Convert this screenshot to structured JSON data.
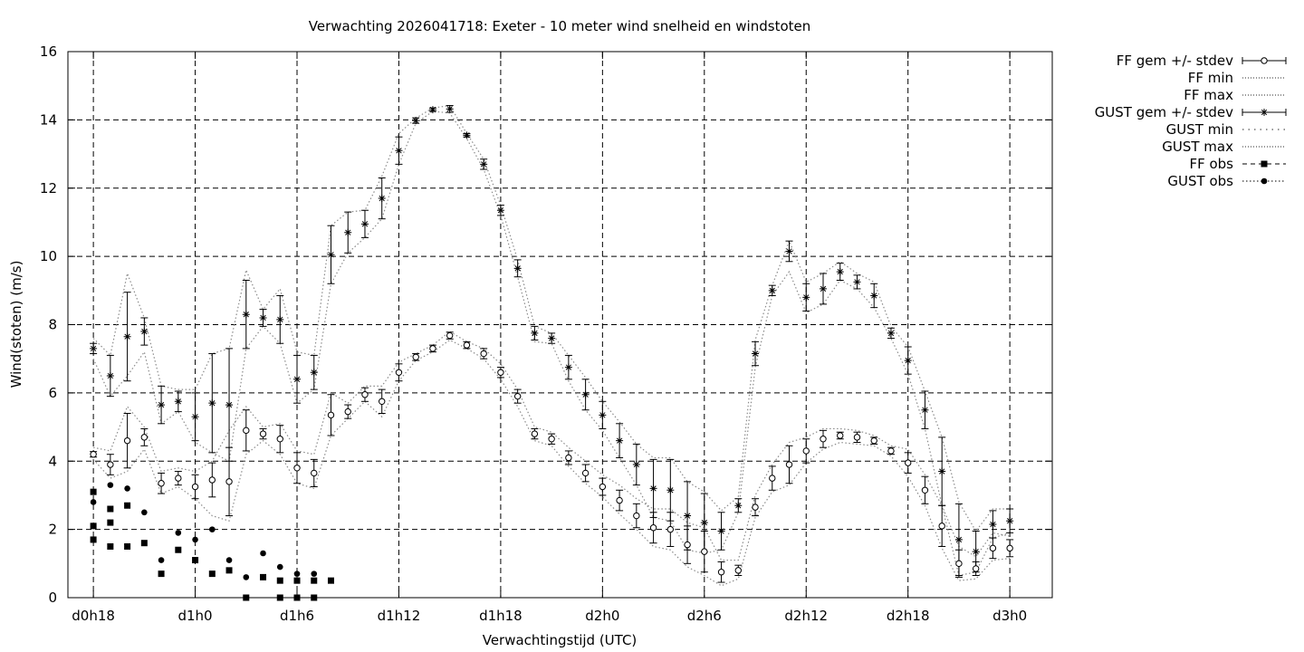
{
  "chart_data": {
    "type": "line",
    "title": "Verwachting 2026041718: Exeter - 10 meter wind snelheid en windstoten",
    "xlabel": "Verwachtingstijd (UTC)",
    "ylabel": "Wind(stoten) (m/s)",
    "ylim": [
      0,
      16
    ],
    "xlim_hours": [
      -1.5,
      56.5
    ],
    "yticks": [
      0,
      2,
      4,
      6,
      8,
      10,
      12,
      14,
      16
    ],
    "xticks": [
      {
        "h": 0,
        "label": "d0h18"
      },
      {
        "h": 6,
        "label": "d1h0"
      },
      {
        "h": 12,
        "label": "d1h6"
      },
      {
        "h": 18,
        "label": "d1h12"
      },
      {
        "h": 24,
        "label": "d1h18"
      },
      {
        "h": 30,
        "label": "d2h0"
      },
      {
        "h": 36,
        "label": "d2h6"
      },
      {
        "h": 42,
        "label": "d2h12"
      },
      {
        "h": 48,
        "label": "d2h18"
      },
      {
        "h": 54,
        "label": "d3h0"
      }
    ],
    "grid": true,
    "legend_position": "outside-top-right",
    "legend": [
      "FF gem +/- stdev",
      "FF min",
      "FF max",
      "GUST gem +/- stdev",
      "GUST min",
      "GUST max",
      "FF obs",
      "GUST obs"
    ],
    "x": [
      0,
      1,
      2,
      3,
      4,
      5,
      6,
      7,
      8,
      9,
      10,
      11,
      12,
      13,
      14,
      15,
      16,
      17,
      18,
      19,
      20,
      21,
      22,
      23,
      24,
      25,
      26,
      27,
      28,
      29,
      30,
      31,
      32,
      33,
      34,
      35,
      36,
      37,
      38,
      39,
      40,
      41,
      42,
      43,
      44,
      45,
      46,
      47,
      48,
      49,
      50,
      51,
      52,
      53,
      54
    ],
    "series": [
      {
        "name": "FF gem +/- stdev",
        "values": [
          4.2,
          3.9,
          4.6,
          4.7,
          3.35,
          3.5,
          3.25,
          3.45,
          3.4,
          4.9,
          4.8,
          4.65,
          3.8,
          3.65,
          5.35,
          5.45,
          5.95,
          5.75,
          6.6,
          7.05,
          7.3,
          7.68,
          7.4,
          7.15,
          6.6,
          5.9,
          4.8,
          4.65,
          4.1,
          3.65,
          3.25,
          2.85,
          2.4,
          2.05,
          2.0,
          1.55,
          1.35,
          0.75,
          0.8,
          2.65,
          3.5,
          3.9,
          4.3,
          4.65,
          4.75,
          4.7,
          4.6,
          4.3,
          3.95,
          3.15,
          2.1,
          1.0,
          0.85,
          1.45,
          1.45
        ],
        "stdev": [
          0.08,
          0.3,
          0.8,
          0.25,
          0.3,
          0.2,
          0.35,
          0.5,
          1.0,
          0.6,
          0.15,
          0.4,
          0.45,
          0.4,
          0.6,
          0.2,
          0.2,
          0.35,
          0.25,
          0.1,
          0.1,
          0.1,
          0.1,
          0.15,
          0.15,
          0.2,
          0.15,
          0.15,
          0.2,
          0.25,
          0.25,
          0.3,
          0.35,
          0.45,
          0.5,
          0.55,
          0.6,
          0.3,
          0.15,
          0.25,
          0.35,
          0.55,
          0.35,
          0.25,
          0.1,
          0.15,
          0.1,
          0.1,
          0.3,
          0.4,
          0.6,
          0.4,
          0.2,
          0.3,
          0.25
        ]
      },
      {
        "name": "FF min",
        "values": [
          4.05,
          3.5,
          3.7,
          4.35,
          3.05,
          3.25,
          2.9,
          2.4,
          2.25,
          4.2,
          4.6,
          4.2,
          3.35,
          3.2,
          4.75,
          5.25,
          5.75,
          5.3,
          6.35,
          6.95,
          7.2,
          7.55,
          7.3,
          7.0,
          6.4,
          5.6,
          4.6,
          4.45,
          3.85,
          3.35,
          2.95,
          2.45,
          2.0,
          1.5,
          1.4,
          0.9,
          0.65,
          0.35,
          0.55,
          2.35,
          3.1,
          3.3,
          3.95,
          4.35,
          4.55,
          4.5,
          4.45,
          4.15,
          3.55,
          2.7,
          1.45,
          0.5,
          0.55,
          1.1,
          1.15
        ]
      },
      {
        "name": "FF max",
        "values": [
          4.4,
          4.3,
          5.6,
          5.0,
          3.7,
          3.8,
          3.7,
          4.0,
          4.9,
          5.6,
          5.0,
          5.1,
          4.3,
          4.2,
          6.0,
          5.7,
          6.2,
          6.2,
          6.9,
          7.15,
          7.4,
          7.8,
          7.5,
          7.3,
          6.85,
          6.1,
          5.0,
          4.85,
          4.4,
          4.0,
          3.6,
          3.3,
          2.9,
          2.6,
          2.6,
          2.2,
          2.05,
          1.1,
          1.1,
          3.0,
          3.9,
          4.55,
          4.7,
          4.95,
          4.95,
          4.9,
          4.75,
          4.45,
          4.35,
          3.6,
          2.7,
          1.5,
          1.2,
          1.9,
          1.8
        ]
      },
      {
        "name": "GUST gem +/- stdev",
        "values": [
          7.3,
          6.5,
          7.65,
          7.8,
          5.65,
          5.75,
          5.3,
          5.7,
          5.65,
          8.3,
          8.2,
          8.15,
          6.4,
          6.6,
          10.05,
          10.7,
          10.95,
          11.7,
          13.1,
          13.98,
          14.3,
          14.32,
          13.55,
          12.7,
          11.35,
          9.65,
          7.75,
          7.6,
          6.75,
          5.95,
          5.35,
          4.6,
          3.9,
          3.2,
          3.15,
          2.4,
          2.2,
          1.95,
          2.7,
          7.15,
          9.0,
          10.15,
          8.8,
          9.05,
          9.55,
          9.25,
          8.85,
          7.75,
          6.95,
          5.5,
          3.7,
          1.7,
          1.35,
          2.15,
          2.25
        ],
        "stdev": [
          0.15,
          0.6,
          1.3,
          0.4,
          0.55,
          0.3,
          0.7,
          1.45,
          1.65,
          1.0,
          0.25,
          0.7,
          0.7,
          0.5,
          0.85,
          0.6,
          0.4,
          0.6,
          0.4,
          0.08,
          0.05,
          0.1,
          0.05,
          0.15,
          0.15,
          0.25,
          0.2,
          0.15,
          0.35,
          0.45,
          0.4,
          0.5,
          0.6,
          0.85,
          0.9,
          1.0,
          0.85,
          0.55,
          0.2,
          0.35,
          0.15,
          0.3,
          0.4,
          0.45,
          0.25,
          0.2,
          0.35,
          0.15,
          0.4,
          0.55,
          1.0,
          1.05,
          0.6,
          0.4,
          0.35
        ]
      },
      {
        "name": "GUST min",
        "values": [
          7.0,
          5.9,
          6.5,
          7.2,
          5.1,
          5.45,
          4.55,
          4.25,
          4.0,
          7.3,
          7.95,
          7.45,
          5.7,
          6.1,
          9.2,
          10.1,
          10.55,
          11.1,
          12.7,
          13.9,
          14.25,
          14.2,
          13.45,
          12.55,
          11.2,
          9.4,
          7.5,
          7.45,
          6.35,
          5.5,
          4.9,
          4.1,
          3.3,
          2.35,
          2.25,
          1.4,
          1.3,
          1.4,
          2.5,
          6.75,
          8.85,
          9.55,
          8.35,
          8.6,
          9.3,
          9.05,
          8.5,
          7.6,
          6.55,
          4.95,
          2.7,
          0.65,
          0.75,
          1.75,
          1.9
        ]
      },
      {
        "name": "GUST max",
        "values": [
          7.6,
          7.1,
          9.5,
          8.2,
          6.2,
          6.1,
          6.1,
          7.15,
          7.3,
          9.6,
          8.45,
          9.05,
          7.2,
          7.1,
          10.9,
          11.3,
          11.35,
          12.35,
          13.6,
          14.05,
          14.35,
          14.42,
          13.6,
          12.85,
          11.5,
          9.9,
          7.95,
          7.75,
          7.1,
          6.45,
          5.75,
          5.15,
          4.5,
          4.1,
          4.1,
          3.4,
          3.1,
          2.55,
          2.95,
          7.55,
          9.15,
          10.45,
          9.25,
          9.5,
          9.85,
          9.5,
          9.25,
          7.95,
          7.35,
          6.05,
          4.7,
          2.8,
          1.95,
          2.6,
          2.6
        ]
      },
      {
        "name": "FF obs",
        "x": [
          0,
          0,
          0,
          1,
          1,
          1,
          2,
          2,
          3,
          4,
          5,
          6,
          7,
          8,
          9,
          10,
          11,
          11,
          12,
          12,
          13,
          13,
          14
        ],
        "values": [
          3.1,
          2.1,
          1.7,
          2.6,
          2.2,
          1.5,
          2.7,
          1.5,
          1.6,
          0.7,
          1.4,
          1.1,
          0.7,
          0.8,
          0.0,
          0.6,
          0.5,
          0.0,
          0.5,
          0.0,
          0.5,
          0.0,
          0.5
        ]
      },
      {
        "name": "GUST obs",
        "x": [
          0,
          1,
          2,
          3,
          4,
          5,
          6,
          7,
          8,
          9,
          10,
          11,
          12,
          13
        ],
        "values": [
          2.8,
          3.3,
          3.2,
          2.5,
          1.1,
          1.9,
          1.7,
          2.0,
          1.1,
          0.6,
          1.3,
          0.9,
          0.7,
          0.7
        ]
      }
    ]
  }
}
